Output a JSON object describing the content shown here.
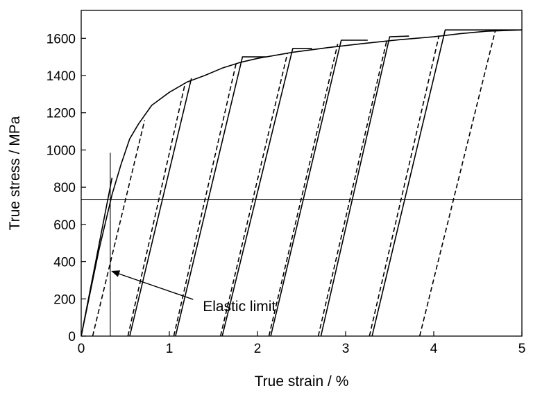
{
  "chart_data": {
    "type": "line",
    "xlabel": "True strain / %",
    "ylabel": "True stress / MPa",
    "xlim": [
      0,
      5
    ],
    "ylim": [
      0,
      1750
    ],
    "xticks": [
      0,
      1,
      2,
      3,
      4,
      5
    ],
    "yticks": [
      0,
      200,
      400,
      600,
      800,
      1000,
      1200,
      1400,
      1600
    ],
    "grid": false,
    "legend": "none",
    "series": [
      {
        "style": "solid",
        "points": [
          [
            0,
            0
          ],
          [
            0.2,
            460
          ],
          [
            0.35,
            760
          ],
          [
            0.45,
            920
          ],
          [
            0.55,
            1060
          ],
          [
            0.65,
            1140
          ],
          [
            0.8,
            1240
          ],
          [
            1.0,
            1310
          ],
          [
            1.2,
            1365
          ],
          [
            1.4,
            1400
          ],
          [
            1.6,
            1440
          ],
          [
            1.8,
            1470
          ],
          [
            2.0,
            1492
          ],
          [
            2.4,
            1525
          ],
          [
            2.8,
            1550
          ],
          [
            3.2,
            1572
          ],
          [
            3.6,
            1592
          ],
          [
            4.0,
            1608
          ],
          [
            4.3,
            1625
          ],
          [
            4.6,
            1638
          ],
          [
            5.0,
            1645
          ]
        ]
      },
      {
        "style": "solid",
        "points": [
          [
            0,
            0
          ],
          [
            0.35,
            850
          ]
        ]
      },
      {
        "style": "solid",
        "points": [
          [
            0.55,
            0
          ],
          [
            1.25,
            1385
          ]
        ]
      },
      {
        "style": "solid",
        "points": [
          [
            1.07,
            0
          ],
          [
            1.83,
            1500
          ],
          [
            2.1,
            1500
          ]
        ]
      },
      {
        "style": "solid",
        "points": [
          [
            1.6,
            0
          ],
          [
            2.4,
            1545
          ],
          [
            2.62,
            1545
          ]
        ]
      },
      {
        "style": "solid",
        "points": [
          [
            2.15,
            0
          ],
          [
            2.95,
            1590
          ],
          [
            3.25,
            1590
          ]
        ]
      },
      {
        "style": "solid",
        "points": [
          [
            2.72,
            0
          ],
          [
            3.5,
            1608
          ],
          [
            3.72,
            1612
          ]
        ]
      },
      {
        "style": "solid",
        "points": [
          [
            3.3,
            0
          ],
          [
            4.13,
            1645
          ],
          [
            5.0,
            1645
          ]
        ]
      },
      {
        "style": "dashed",
        "points": [
          [
            0.13,
            0
          ],
          [
            0.72,
            1160
          ]
        ]
      },
      {
        "style": "dashed",
        "points": [
          [
            0.53,
            0
          ],
          [
            1.18,
            1360
          ]
        ]
      },
      {
        "style": "dashed",
        "points": [
          [
            1.05,
            0
          ],
          [
            1.76,
            1470
          ]
        ]
      },
      {
        "style": "dashed",
        "points": [
          [
            1.58,
            0
          ],
          [
            2.34,
            1520
          ]
        ]
      },
      {
        "style": "dashed",
        "points": [
          [
            2.13,
            0
          ],
          [
            2.91,
            1570
          ]
        ]
      },
      {
        "style": "dashed",
        "points": [
          [
            2.69,
            0
          ],
          [
            3.47,
            1595
          ]
        ]
      },
      {
        "style": "dashed",
        "points": [
          [
            3.27,
            0
          ],
          [
            4.06,
            1615
          ]
        ]
      },
      {
        "style": "dashed",
        "points": [
          [
            3.84,
            0
          ],
          [
            4.7,
            1645
          ]
        ]
      }
    ],
    "reference_lines": [
      {
        "orientation": "horizontal",
        "y": 735
      },
      {
        "orientation": "vertical",
        "x": 0.33,
        "y_range": [
          0,
          985
        ]
      }
    ],
    "annotations": [
      {
        "text": "Elastic limit",
        "x": 1.38,
        "y": 160,
        "arrow_to": [
          0.34,
          350
        ]
      }
    ]
  }
}
